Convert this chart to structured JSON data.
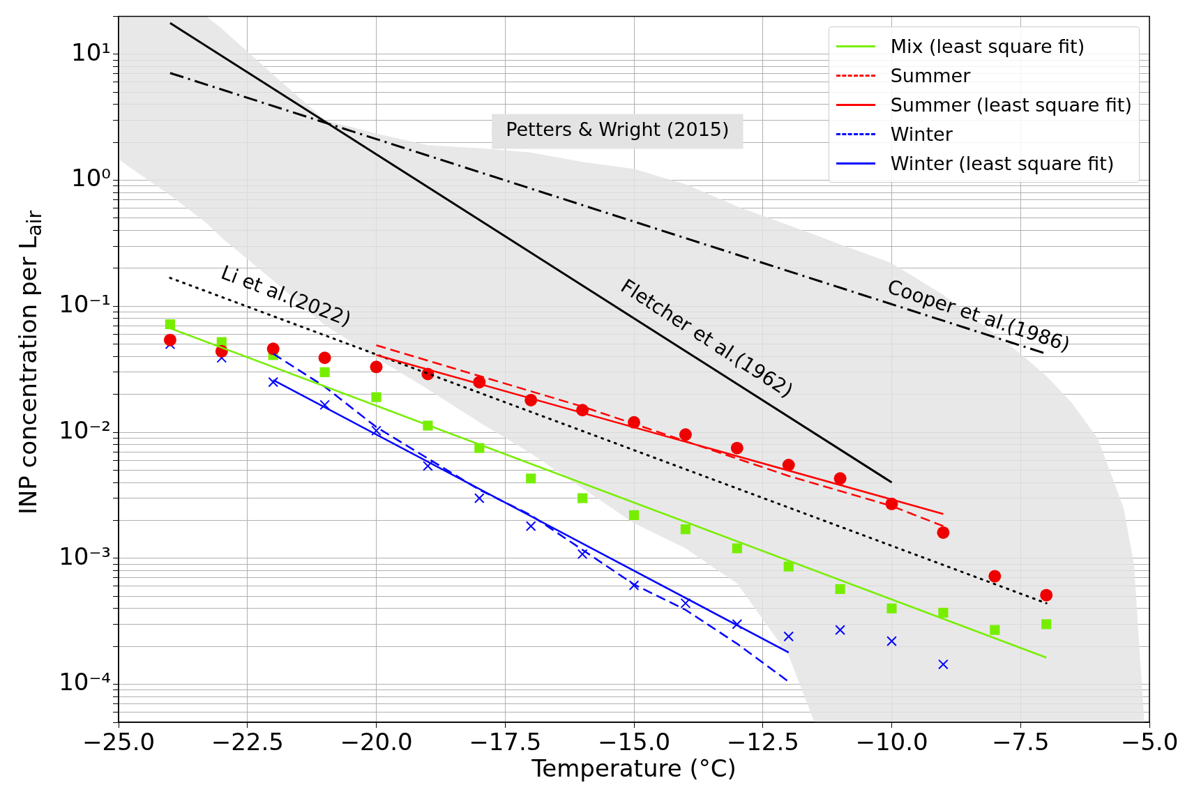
{
  "chart_data": {
    "type": "scatter",
    "xlabel": "Temperature (°C)",
    "ylabel": "INP concentration per L$_{air}$",
    "log": "y",
    "grid": true,
    "legend": "top right",
    "xlim": [
      -25,
      -5
    ],
    "xticks": [
      {
        "value": -25,
        "label": "−25.0"
      },
      {
        "value": -22.5,
        "label": "−22.5"
      },
      {
        "value": -20,
        "label": "−20.0"
      },
      {
        "value": -17.5,
        "label": "−17.5"
      },
      {
        "value": -15,
        "label": "−15.0"
      },
      {
        "value": -12.5,
        "label": "−12.5"
      },
      {
        "value": -10,
        "label": "−10.0"
      },
      {
        "value": -7.5,
        "label": "−7.5"
      },
      {
        "value": -5,
        "label": "−5.0"
      }
    ],
    "ylim": [
      5e-05,
      20
    ],
    "yticks": [
      {
        "value": 5e-05,
        "label": null
      },
      {
        "value": 6e-05,
        "label": null
      },
      {
        "value": 7e-05,
        "label": null
      },
      {
        "value": 8e-05,
        "label": null
      },
      {
        "value": 9e-05,
        "label": null
      },
      {
        "value": 0.0001,
        "label": "10⁻⁴"
      },
      {
        "value": 0.0002,
        "label": null
      },
      {
        "value": 0.0003,
        "label": null
      },
      {
        "value": 0.0004,
        "label": null
      },
      {
        "value": 0.0005,
        "label": null
      },
      {
        "value": 0.0006,
        "label": null
      },
      {
        "value": 0.0007,
        "label": null
      },
      {
        "value": 0.0008,
        "label": null
      },
      {
        "value": 0.0009,
        "label": null
      },
      {
        "value": 0.001,
        "label": "10⁻³"
      },
      {
        "value": 0.002,
        "label": null
      },
      {
        "value": 0.003,
        "label": null
      },
      {
        "value": 0.004,
        "label": null
      },
      {
        "value": 0.005,
        "label": null
      },
      {
        "value": 0.006,
        "label": null
      },
      {
        "value": 0.007,
        "label": null
      },
      {
        "value": 0.008,
        "label": null
      },
      {
        "value": 0.009,
        "label": null
      },
      {
        "value": 0.01,
        "label": "10⁻²"
      },
      {
        "value": 0.02,
        "label": null
      },
      {
        "value": 0.03,
        "label": null
      },
      {
        "value": 0.04,
        "label": null
      },
      {
        "value": 0.05,
        "label": null
      },
      {
        "value": 0.06,
        "label": null
      },
      {
        "value": 0.07,
        "label": null
      },
      {
        "value": 0.08,
        "label": null
      },
      {
        "value": 0.09,
        "label": null
      },
      {
        "value": 0.1,
        "label": "10⁻¹"
      },
      {
        "value": 0.2,
        "label": null
      },
      {
        "value": 0.3,
        "label": null
      },
      {
        "value": 0.4,
        "label": null
      },
      {
        "value": 0.5,
        "label": null
      },
      {
        "value": 0.6,
        "label": null
      },
      {
        "value": 0.7,
        "label": null
      },
      {
        "value": 0.8,
        "label": null
      },
      {
        "value": 0.9,
        "label": null
      },
      {
        "value": 1,
        "label": "10⁰"
      },
      {
        "value": 2,
        "label": null
      },
      {
        "value": 3,
        "label": null
      },
      {
        "value": 4,
        "label": null
      },
      {
        "value": 5,
        "label": null
      },
      {
        "value": 6,
        "label": null
      },
      {
        "value": 7,
        "label": null
      },
      {
        "value": 8,
        "label": null
      },
      {
        "value": 9,
        "label": null
      },
      {
        "value": 10,
        "label": "10¹"
      },
      {
        "value": 20,
        "label": null
      }
    ],
    "series": [
      {
        "name": "Mix (least square fit)",
        "type": "line",
        "color": "#77ee00",
        "marker": "none",
        "line_style": "solid",
        "x": [
          -24,
          -7
        ],
        "values": [
          0.067,
          0.000163
        ]
      },
      {
        "name": "Summer",
        "type": "line",
        "color": "#ff0000",
        "marker": "none",
        "line_style": "dashed",
        "x": [
          -20,
          -18,
          -16,
          -14,
          -12,
          -10,
          -9
        ],
        "values": [
          0.049,
          0.028,
          0.016,
          0.0085,
          0.0045,
          0.0026,
          0.0018
        ]
      },
      {
        "name": "Summer (least square fit)",
        "type": "line",
        "color": "#ff0000",
        "marker": "none",
        "line_style": "solid",
        "x": [
          -20,
          -9
        ],
        "values": [
          0.041,
          0.00225
        ]
      },
      {
        "name": "Winter",
        "type": "line",
        "color": "#0000ff",
        "marker": "none",
        "line_style": "dashed",
        "x": [
          -22,
          -21,
          -20,
          -19,
          -18,
          -17,
          -15,
          -14,
          -13,
          -12
        ],
        "values": [
          0.042,
          0.023,
          0.011,
          0.0062,
          0.0035,
          0.0022,
          0.00062,
          0.00039,
          0.00021,
          0.000105
        ]
      },
      {
        "name": "Winter (least square fit)",
        "type": "line",
        "color": "#0000ff",
        "marker": "none",
        "line_style": "solid",
        "x": [
          -22,
          -12
        ],
        "values": [
          0.026,
          0.000179
        ]
      },
      {
        "color": "#ee0000",
        "marker": "circle",
        "x": [
          -24,
          -23,
          -22,
          -21,
          -20,
          -19,
          -18,
          -17,
          -16,
          -15,
          -14,
          -13,
          -12,
          -11,
          -10,
          -9,
          -8,
          -7
        ],
        "values": [
          0.054,
          0.044,
          0.046,
          0.039,
          0.033,
          0.029,
          0.025,
          0.018,
          0.015,
          0.012,
          0.0096,
          0.0075,
          0.0055,
          0.0043,
          0.0027,
          0.0016,
          0.00072,
          0.00051
        ]
      },
      {
        "color": "#77ee00",
        "marker": "square",
        "x": [
          -24,
          -23,
          -22,
          -21,
          -20,
          -19,
          -18,
          -17,
          -16,
          -15,
          -14,
          -13,
          -12,
          -11,
          -10,
          -9,
          -8,
          -7
        ],
        "values": [
          0.072,
          0.052,
          0.041,
          0.03,
          0.019,
          0.0113,
          0.0075,
          0.0043,
          0.003,
          0.0022,
          0.0017,
          0.0012,
          0.00086,
          0.00057,
          0.0004,
          0.00037,
          0.00027,
          0.0003
        ]
      },
      {
        "color": "#0000ff",
        "marker": "cross",
        "x": [
          -24,
          -23,
          -22,
          -21,
          -20,
          -19,
          -18,
          -17,
          -16,
          -15,
          -14,
          -13,
          -12,
          -11,
          -10,
          -9
        ],
        "values": [
          0.05,
          0.039,
          0.025,
          0.0165,
          0.0103,
          0.0054,
          0.003,
          0.0018,
          0.00108,
          0.00061,
          0.00044,
          0.0003,
          0.00024,
          0.00027,
          0.00022,
          0.000144
        ]
      },
      {
        "type": "line",
        "color": "#000000",
        "marker": "none",
        "line_style": "solid",
        "x": [
          -24,
          -10
        ],
        "values": [
          17.7,
          0.004
        ]
      },
      {
        "type": "line",
        "color": "#000000",
        "marker": "none",
        "line_style": "dashdot",
        "x": [
          -24,
          -7
        ],
        "values": [
          7.1,
          0.042
        ]
      },
      {
        "type": "line",
        "color": "#000000",
        "marker": "none",
        "line_style": "dotted",
        "x": [
          -24,
          -7
        ],
        "values": [
          0.168,
          0.00044
        ]
      },
      {
        "type": "area",
        "color": "#e3e3e3",
        "x": [
          -25,
          -24,
          -23.3,
          -23,
          -22,
          -21,
          -20,
          -19,
          -18,
          -17,
          -16,
          -15,
          -14,
          -13,
          -12,
          -11.5,
          -11,
          -10,
          -9,
          -8,
          -7.5,
          -7,
          -6.5,
          -6,
          -5.5,
          -5.3,
          -5.1
        ],
        "values": [
          null,
          null,
          null,
          null,
          null,
          null,
          null,
          null,
          null,
          null,
          null,
          null,
          null,
          null,
          null,
          null,
          null,
          null,
          null,
          null,
          null,
          null,
          null,
          null,
          null,
          null,
          null
        ],
        "upper": [
          20,
          20,
          20,
          16,
          6.9,
          3,
          2.35,
          1.9,
          1.8,
          1.66,
          1.4,
          1.23,
          0.93,
          0.62,
          0.44,
          0.37,
          0.31,
          0.22,
          0.123,
          0.06,
          0.042,
          0.028,
          0.017,
          0.0089,
          0.0025,
          0.0009,
          5e-05
        ],
        "lower": [
          1.46,
          0.76,
          0.46,
          0.35,
          0.16,
          0.071,
          0.039,
          0.022,
          0.012,
          0.0068,
          0.0036,
          0.0019,
          0.0012,
          0.00063,
          0.00017,
          5e-05,
          5e-05,
          5e-05,
          5e-05,
          5e-05,
          5e-05,
          5e-05,
          5e-05,
          5e-05,
          5e-05,
          5e-05,
          5e-05
        ]
      }
    ],
    "annotations": [
      "Li et al.(2022)",
      "Fletcher et al.(1962)",
      "Cooper et al.(1986)",
      "Petters & Wright (2015)"
    ]
  }
}
